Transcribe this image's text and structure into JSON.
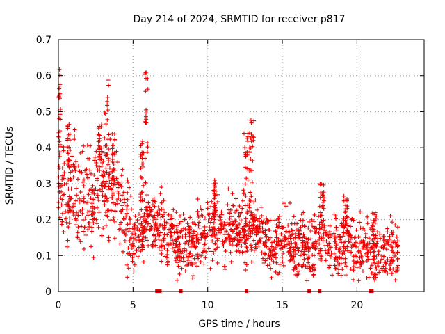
{
  "chart_data": {
    "type": "scatter",
    "title": "Day 214 of 2024, SRMTID for receiver p817",
    "xlabel": "GPS time / hours",
    "ylabel": "SRMTID / TECUs",
    "xlim": [
      0,
      24.5
    ],
    "ylim": [
      0,
      0.7
    ],
    "xticks": [
      "0",
      "5",
      "10",
      "15",
      "20"
    ],
    "yticks": [
      "0",
      "0.1",
      "0.2",
      "0.3",
      "0.4",
      "0.5",
      "0.6",
      "0.7"
    ],
    "grid": true,
    "marker": "plus",
    "color": "#ee0000",
    "series": [
      {
        "name": "SRMTID",
        "profile_x": [
          0,
          0.5,
          1,
          1.5,
          2,
          2.5,
          3,
          3.5,
          4,
          4.5,
          5,
          5.5,
          6,
          6.5,
          7,
          7.5,
          8,
          8.5,
          9,
          9.5,
          10,
          10.5,
          11,
          11.5,
          12,
          12.5,
          13,
          13.5,
          14,
          14.5,
          15,
          15.5,
          16,
          16.5,
          17,
          17.5,
          18,
          18.5,
          19,
          19.5,
          20,
          20.5,
          21,
          21.5,
          22,
          22.5,
          22.8
        ],
        "profile_y": [
          0.3,
          0.26,
          0.28,
          0.26,
          0.27,
          0.28,
          0.3,
          0.28,
          0.26,
          0.21,
          0.16,
          0.14,
          0.2,
          0.19,
          0.17,
          0.15,
          0.13,
          0.14,
          0.14,
          0.15,
          0.16,
          0.19,
          0.17,
          0.18,
          0.16,
          0.15,
          0.2,
          0.16,
          0.14,
          0.13,
          0.13,
          0.14,
          0.14,
          0.13,
          0.12,
          0.15,
          0.13,
          0.12,
          0.12,
          0.13,
          0.12,
          0.12,
          0.1,
          0.1,
          0.11,
          0.12,
          0.11
        ],
        "spread": 0.06,
        "n_points": 1700,
        "spikes": [
          {
            "x": [
              0.0,
              0.15
            ],
            "y": [
              0.35,
              0.63
            ]
          },
          {
            "x": [
              0.6,
              0.8
            ],
            "y": [
              0.3,
              0.48
            ]
          },
          {
            "x": [
              2.6,
              2.9
            ],
            "y": [
              0.3,
              0.47
            ]
          },
          {
            "x": [
              3.1,
              3.4
            ],
            "y": [
              0.3,
              0.59
            ]
          },
          {
            "x": [
              3.6,
              3.8
            ],
            "y": [
              0.3,
              0.44
            ]
          },
          {
            "x": [
              5.5,
              5.7
            ],
            "y": [
              0.25,
              0.42
            ]
          },
          {
            "x": [
              5.8,
              6.0
            ],
            "y": [
              0.3,
              0.61
            ]
          },
          {
            "x": [
              12.4,
              12.7
            ],
            "y": [
              0.25,
              0.45
            ]
          },
          {
            "x": [
              12.8,
              13.1
            ],
            "y": [
              0.3,
              0.48
            ]
          },
          {
            "x": [
              17.5,
              17.8
            ],
            "y": [
              0.2,
              0.3
            ]
          },
          {
            "x": [
              19.1,
              19.4
            ],
            "y": [
              0.15,
              0.27
            ]
          },
          {
            "x": [
              21.0,
              21.3
            ],
            "y": [
              0.12,
              0.22
            ]
          },
          {
            "x": [
              10.4,
              10.6
            ],
            "y": [
              0.2,
              0.31
            ]
          }
        ],
        "zero_markers_x": [
          6.6,
          6.8,
          8.2,
          12.6,
          16.8,
          17.5,
          20.9,
          21.0
        ]
      }
    ]
  }
}
